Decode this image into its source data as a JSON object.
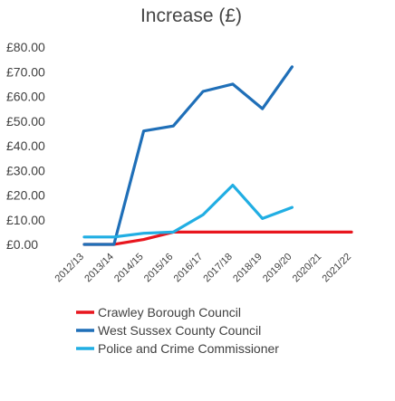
{
  "chart_data": {
    "type": "line",
    "title": "Increase (£)",
    "xlabel": "",
    "ylabel": "",
    "x": [
      "2012/13",
      "2013/14",
      "2014/15",
      "2015/16",
      "2016/17",
      "2017/18",
      "2018/19",
      "2019/20",
      "2020/21",
      "2021/22"
    ],
    "y_tick_labels": [
      "£0.00",
      "£10.00",
      "£20.00",
      "£30.00",
      "£40.00",
      "£50.00",
      "£60.00",
      "£70.00",
      "£80.00"
    ],
    "ylim": [
      0,
      80
    ],
    "grid": false,
    "legend_position": "bottom",
    "series": [
      {
        "name": "Crawley Borough Council",
        "color": "#e8161e",
        "values": [
          0,
          0,
          2,
          5,
          5,
          5,
          5,
          5,
          5,
          5
        ]
      },
      {
        "name": "West Sussex County Council",
        "color": "#1f6fb8",
        "values": [
          0,
          0,
          46,
          48,
          62,
          65,
          55,
          72,
          null,
          null
        ]
      },
      {
        "name": "Police and Crime Commissioner",
        "color": "#21aee3",
        "values": [
          3,
          3,
          4.5,
          5,
          12,
          24,
          10.5,
          15,
          null,
          null
        ]
      }
    ]
  }
}
